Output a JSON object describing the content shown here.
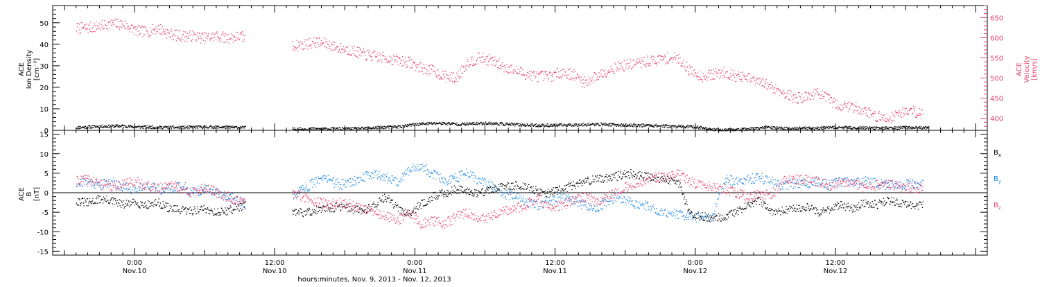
{
  "chart_data": [
    {
      "type": "scatter",
      "panel": "top",
      "ylabel_left": [
        "ACE",
        "Ion Density",
        "[cm⁻³]"
      ],
      "ylabel_right": [
        "ACE",
        "Velocity",
        "[km/s]"
      ],
      "ylim_left": [
        0,
        58
      ],
      "ylim_right": [
        370,
        680
      ],
      "yticks_left": [
        0,
        10,
        20,
        30,
        40,
        50
      ],
      "yticks_right": [
        400,
        450,
        500,
        550,
        600,
        650
      ],
      "colors": {
        "density": "#000000",
        "velocity": "#e8406a"
      },
      "series": [
        {
          "key": "density",
          "axis": "left",
          "x": [
            -5,
            -3,
            -1,
            0,
            2,
            4,
            6,
            8,
            9.5,
            13.5,
            16,
            19,
            21,
            23,
            24,
            26,
            28,
            30,
            32,
            34,
            36,
            38,
            40,
            42,
            44,
            46,
            48,
            49.5,
            50,
            52,
            54,
            56,
            58,
            60,
            62,
            64,
            66,
            68
          ],
          "values": [
            1.5,
            2,
            2.2,
            1.8,
            1.6,
            1.5,
            1.8,
            1.6,
            1.5,
            0.8,
            0.8,
            0.9,
            1.5,
            2,
            3,
            3.5,
            3,
            3.5,
            3,
            2.5,
            2.5,
            2.8,
            3,
            2.5,
            2.5,
            2,
            1.8,
            0.5,
            0.3,
            0.5,
            1.5,
            1,
            1.2,
            1.5,
            1.4,
            1.2,
            1.5,
            1.2
          ]
        },
        {
          "key": "velocity",
          "axis": "right",
          "x": [
            -5,
            -4,
            -3,
            -2,
            -1,
            0,
            1,
            2,
            3,
            4,
            5,
            6,
            7,
            8,
            9,
            9.5,
            13.5,
            14.5,
            15.5,
            16.5,
            17.5,
            18.5,
            19.5,
            20.5,
            21.5,
            22.5,
            23.5,
            24.5,
            25.5,
            26.5,
            27.5,
            28.5,
            29.5,
            30.5,
            31.5,
            32.5,
            33.5,
            34.5,
            35.5,
            36.5,
            37.5,
            38.5,
            39.5,
            40.5,
            41.5,
            42.5,
            43.5,
            44.5,
            45.5,
            46.5,
            47.5,
            48.5,
            49.5,
            50.5,
            51.5,
            52.5,
            53.5,
            54.5,
            55.5,
            56.5,
            57.5,
            58.5,
            59.5,
            60.5,
            61.5,
            62.5,
            63.5,
            64.5,
            65.5,
            66.5,
            67.5
          ],
          "values": [
            625,
            625,
            630,
            635,
            635,
            620,
            615,
            625,
            610,
            605,
            605,
            600,
            605,
            600,
            605,
            600,
            580,
            585,
            590,
            585,
            575,
            570,
            560,
            555,
            550,
            545,
            540,
            525,
            520,
            505,
            500,
            540,
            550,
            545,
            530,
            520,
            510,
            505,
            505,
            515,
            510,
            490,
            505,
            520,
            530,
            535,
            540,
            545,
            550,
            550,
            520,
            505,
            510,
            515,
            505,
            500,
            490,
            480,
            465,
            450,
            455,
            465,
            445,
            430,
            430,
            420,
            405,
            400,
            415,
            420,
            410
          ]
        }
      ]
    },
    {
      "type": "scatter",
      "panel": "bottom",
      "ylabel": [
        "ACE",
        "B",
        "[nT]"
      ],
      "ylim": [
        -16,
        16
      ],
      "yticks": [
        -15,
        -10,
        -5,
        0,
        5,
        10,
        15
      ],
      "zero_line": true,
      "colors": {
        "Bx": "#000000",
        "By": "#1e88e5",
        "Bz": "#e8406a"
      },
      "legend": [
        {
          "key": "Bx",
          "base": "B",
          "sub": "x"
        },
        {
          "key": "By",
          "base": "B",
          "sub": "y"
        },
        {
          "key": "Bz",
          "base": "B",
          "sub": "z"
        }
      ],
      "series": [
        {
          "key": "Bx",
          "x": [
            -5,
            -4,
            -3,
            -2,
            -1,
            0,
            1,
            2,
            3,
            4,
            5,
            6,
            7,
            8,
            9,
            9.5,
            13.5,
            14.5,
            15.5,
            16.5,
            17.5,
            18.5,
            19.5,
            20.5,
            21.5,
            22.5,
            23.5,
            24.5,
            25.5,
            26.5,
            27.5,
            28.5,
            29.5,
            30.5,
            31.5,
            32.5,
            33.5,
            34.5,
            35.5,
            36.5,
            37.5,
            38.5,
            39.5,
            40.5,
            41.5,
            42.5,
            43.5,
            44.5,
            45.5,
            46.5,
            47.5,
            48.5,
            49.5,
            50.5,
            51.5,
            52.5,
            53.5,
            54.5,
            55.5,
            56.5,
            57.5,
            58.5,
            59.5,
            60.5,
            61.5,
            62.5,
            63.5,
            64.5,
            65.5,
            66.5,
            67.5
          ],
          "values": [
            -2,
            -2.5,
            -1.5,
            -2,
            -3,
            -2.5,
            -3,
            -2.5,
            -4,
            -4.5,
            -4.5,
            -4,
            -5,
            -4.5,
            -3.5,
            -3,
            -5,
            -5,
            -4.5,
            -4,
            -3.5,
            -4,
            -4.5,
            -3,
            -1,
            -4,
            -5,
            -3,
            -1,
            0,
            1,
            0.5,
            0,
            1,
            1.5,
            2,
            1.5,
            0.5,
            0,
            1,
            2,
            3,
            3.5,
            4,
            4.5,
            5,
            4.5,
            4,
            3.5,
            3,
            -5,
            -6,
            -6.5,
            -6,
            -5,
            -3,
            -2,
            -5,
            -4.5,
            -4,
            -3.5,
            -5,
            -4,
            -3,
            -4,
            -2.5,
            -3,
            -2,
            -2.5,
            -3,
            -3
          ]
        },
        {
          "key": "By",
          "x": [
            -5,
            -4,
            -3,
            -2,
            -1,
            0,
            1,
            2,
            3,
            4,
            5,
            6,
            7,
            8,
            9,
            9.5,
            13.5,
            14.5,
            15.5,
            16.5,
            17.5,
            18.5,
            19.5,
            20.5,
            21.5,
            22.5,
            23.5,
            24.5,
            25.5,
            26.5,
            27.5,
            28.5,
            29.5,
            30.5,
            31.5,
            32.5,
            33.5,
            34.5,
            35.5,
            36.5,
            37.5,
            38.5,
            39.5,
            40.5,
            41.5,
            42.5,
            43.5,
            44.5,
            45.5,
            46.5,
            47.5,
            48.5,
            49.5,
            50.5,
            51.5,
            52.5,
            53.5,
            54.5,
            55.5,
            56.5,
            57.5,
            58.5,
            59.5,
            60.5,
            61.5,
            62.5,
            63.5,
            64.5,
            65.5,
            66.5,
            67.5
          ],
          "values": [
            2.5,
            3,
            2,
            3,
            1.5,
            1,
            2,
            1,
            1,
            2,
            0,
            1,
            0,
            -1,
            -2,
            -3,
            -1,
            1,
            3,
            4,
            2,
            3,
            4,
            5,
            4,
            3,
            6,
            7,
            5,
            3,
            4,
            5,
            3,
            2,
            0,
            -1,
            -2,
            -3,
            -2,
            -1,
            -2,
            -3,
            -4,
            -2,
            -1,
            -2.5,
            -3,
            -4,
            -5,
            -5.5,
            -6,
            -6.5,
            -6,
            3.5,
            3,
            3.5,
            4,
            3,
            2,
            2.5,
            2.5,
            3,
            2,
            3,
            2.5,
            3,
            2.5,
            2,
            2,
            2.5,
            2
          ]
        },
        {
          "key": "Bz",
          "x": [
            -5,
            -4,
            -3,
            -2,
            -1,
            0,
            1,
            2,
            3,
            4,
            5,
            6,
            7,
            8,
            9,
            9.5,
            13.5,
            14.5,
            15.5,
            16.5,
            17.5,
            18.5,
            19.5,
            20.5,
            21.5,
            22.5,
            23.5,
            24.5,
            25.5,
            26.5,
            27.5,
            28.5,
            29.5,
            30.5,
            31.5,
            32.5,
            33.5,
            34.5,
            35.5,
            36.5,
            37.5,
            38.5,
            39.5,
            40.5,
            41.5,
            42.5,
            43.5,
            44.5,
            45.5,
            46.5,
            47.5,
            48.5,
            49.5,
            50.5,
            51.5,
            52.5,
            53.5,
            54.5,
            55.5,
            56.5,
            57.5,
            58.5,
            59.5,
            60.5,
            61.5,
            62.5,
            63.5,
            64.5,
            65.5,
            66.5,
            67.5
          ],
          "values": [
            3,
            3.5,
            2.5,
            1.5,
            2.5,
            3,
            2,
            1,
            2.5,
            1,
            0,
            1.5,
            0,
            -1,
            -2.5,
            -2,
            0,
            -1,
            -2,
            -3,
            -2.5,
            -3,
            -4,
            -5,
            -6,
            -7,
            -5,
            -8,
            -7,
            -8,
            -6,
            -5,
            -7,
            -6,
            -5,
            -4,
            -3,
            -1,
            -4,
            -3,
            -2,
            -1,
            -2,
            -1,
            1,
            2,
            3,
            4,
            4,
            5,
            3,
            2,
            1.5,
            1,
            0,
            -1,
            0,
            -0.5,
            3,
            3.5,
            3.5,
            3,
            2,
            3,
            2.5,
            1.5,
            2,
            2.5,
            1.5,
            1.5,
            1
          ]
        }
      ]
    }
  ],
  "x_axis": {
    "xlim": [
      -7,
      73
    ],
    "ticks": [
      {
        "x": 0,
        "time": "0:00",
        "date": "Nov.10"
      },
      {
        "x": 12,
        "time": "12:00",
        "date": "Nov.10"
      },
      {
        "x": 24,
        "time": "0:00",
        "date": "Nov.11"
      },
      {
        "x": 36,
        "time": "12:00",
        "date": "Nov.11"
      },
      {
        "x": 48,
        "time": "0:00",
        "date": "Nov.12"
      },
      {
        "x": 60,
        "time": "12:00",
        "date": "Nov.12"
      }
    ],
    "title": "hours:minutes, Nov.  9, 2013 - Nov. 12, 2013"
  }
}
